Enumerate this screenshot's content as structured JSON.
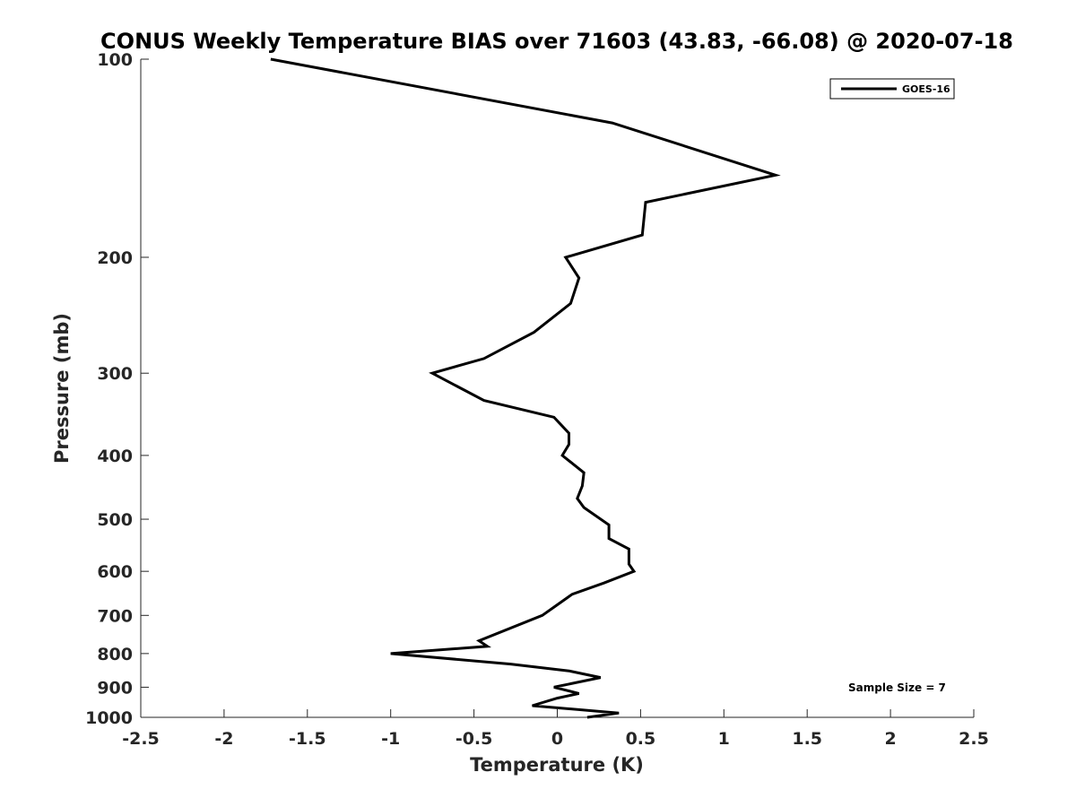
{
  "chart_data": {
    "type": "line",
    "title": "CONUS Weekly Temperature BIAS over 71603 (43.83, -66.08) @ 2020-07-18",
    "xlabel": "Temperature (K)",
    "ylabel": "Pressure (mb)",
    "xlim": [
      -2.5,
      2.5
    ],
    "ylim": [
      1000,
      100
    ],
    "y_scale": "log",
    "y_reversed": true,
    "grid": false,
    "x_ticks": [
      -2.5,
      -2,
      -1.5,
      -1,
      -0.5,
      0,
      0.5,
      1,
      1.5,
      2,
      2.5
    ],
    "x_tick_labels": [
      "-2.5",
      "-2",
      "-1.5",
      "-1",
      "-0.5",
      "0",
      "0.5",
      "1",
      "1.5",
      "2",
      "2.5"
    ],
    "y_ticks": [
      100,
      200,
      300,
      400,
      500,
      600,
      700,
      800,
      900,
      1000
    ],
    "y_tick_labels": [
      "100",
      "200",
      "300",
      "400",
      "500",
      "600",
      "700",
      "800",
      "900",
      "1000"
    ],
    "legend_position": "top-right",
    "series": [
      {
        "name": "GOES-16",
        "color": "#000000",
        "x": [
          -1.72,
          0.33,
          1.31,
          0.53,
          0.51,
          0.05,
          0.13,
          0.08,
          -0.14,
          -0.44,
          -0.75,
          -0.44,
          -0.02,
          0.07,
          0.07,
          0.03,
          0.16,
          0.15,
          0.12,
          0.16,
          0.31,
          0.31,
          0.43,
          0.43,
          0.46,
          0.28,
          0.09,
          -0.02,
          -0.09,
          -0.47,
          -0.42,
          -1.0,
          -0.28,
          0.07,
          0.26,
          -0.02,
          0.13,
          0.0,
          -0.15,
          0.37,
          0.18
        ],
        "y": [
          100,
          125,
          150,
          165,
          185,
          200,
          215,
          235,
          260,
          285,
          300,
          330,
          350,
          370,
          385,
          400,
          425,
          445,
          465,
          480,
          510,
          535,
          555,
          585,
          600,
          625,
          650,
          680,
          700,
          765,
          780,
          800,
          830,
          850,
          870,
          900,
          920,
          935,
          960,
          985,
          1000
        ]
      }
    ],
    "annotation": "Sample Size = 7"
  }
}
